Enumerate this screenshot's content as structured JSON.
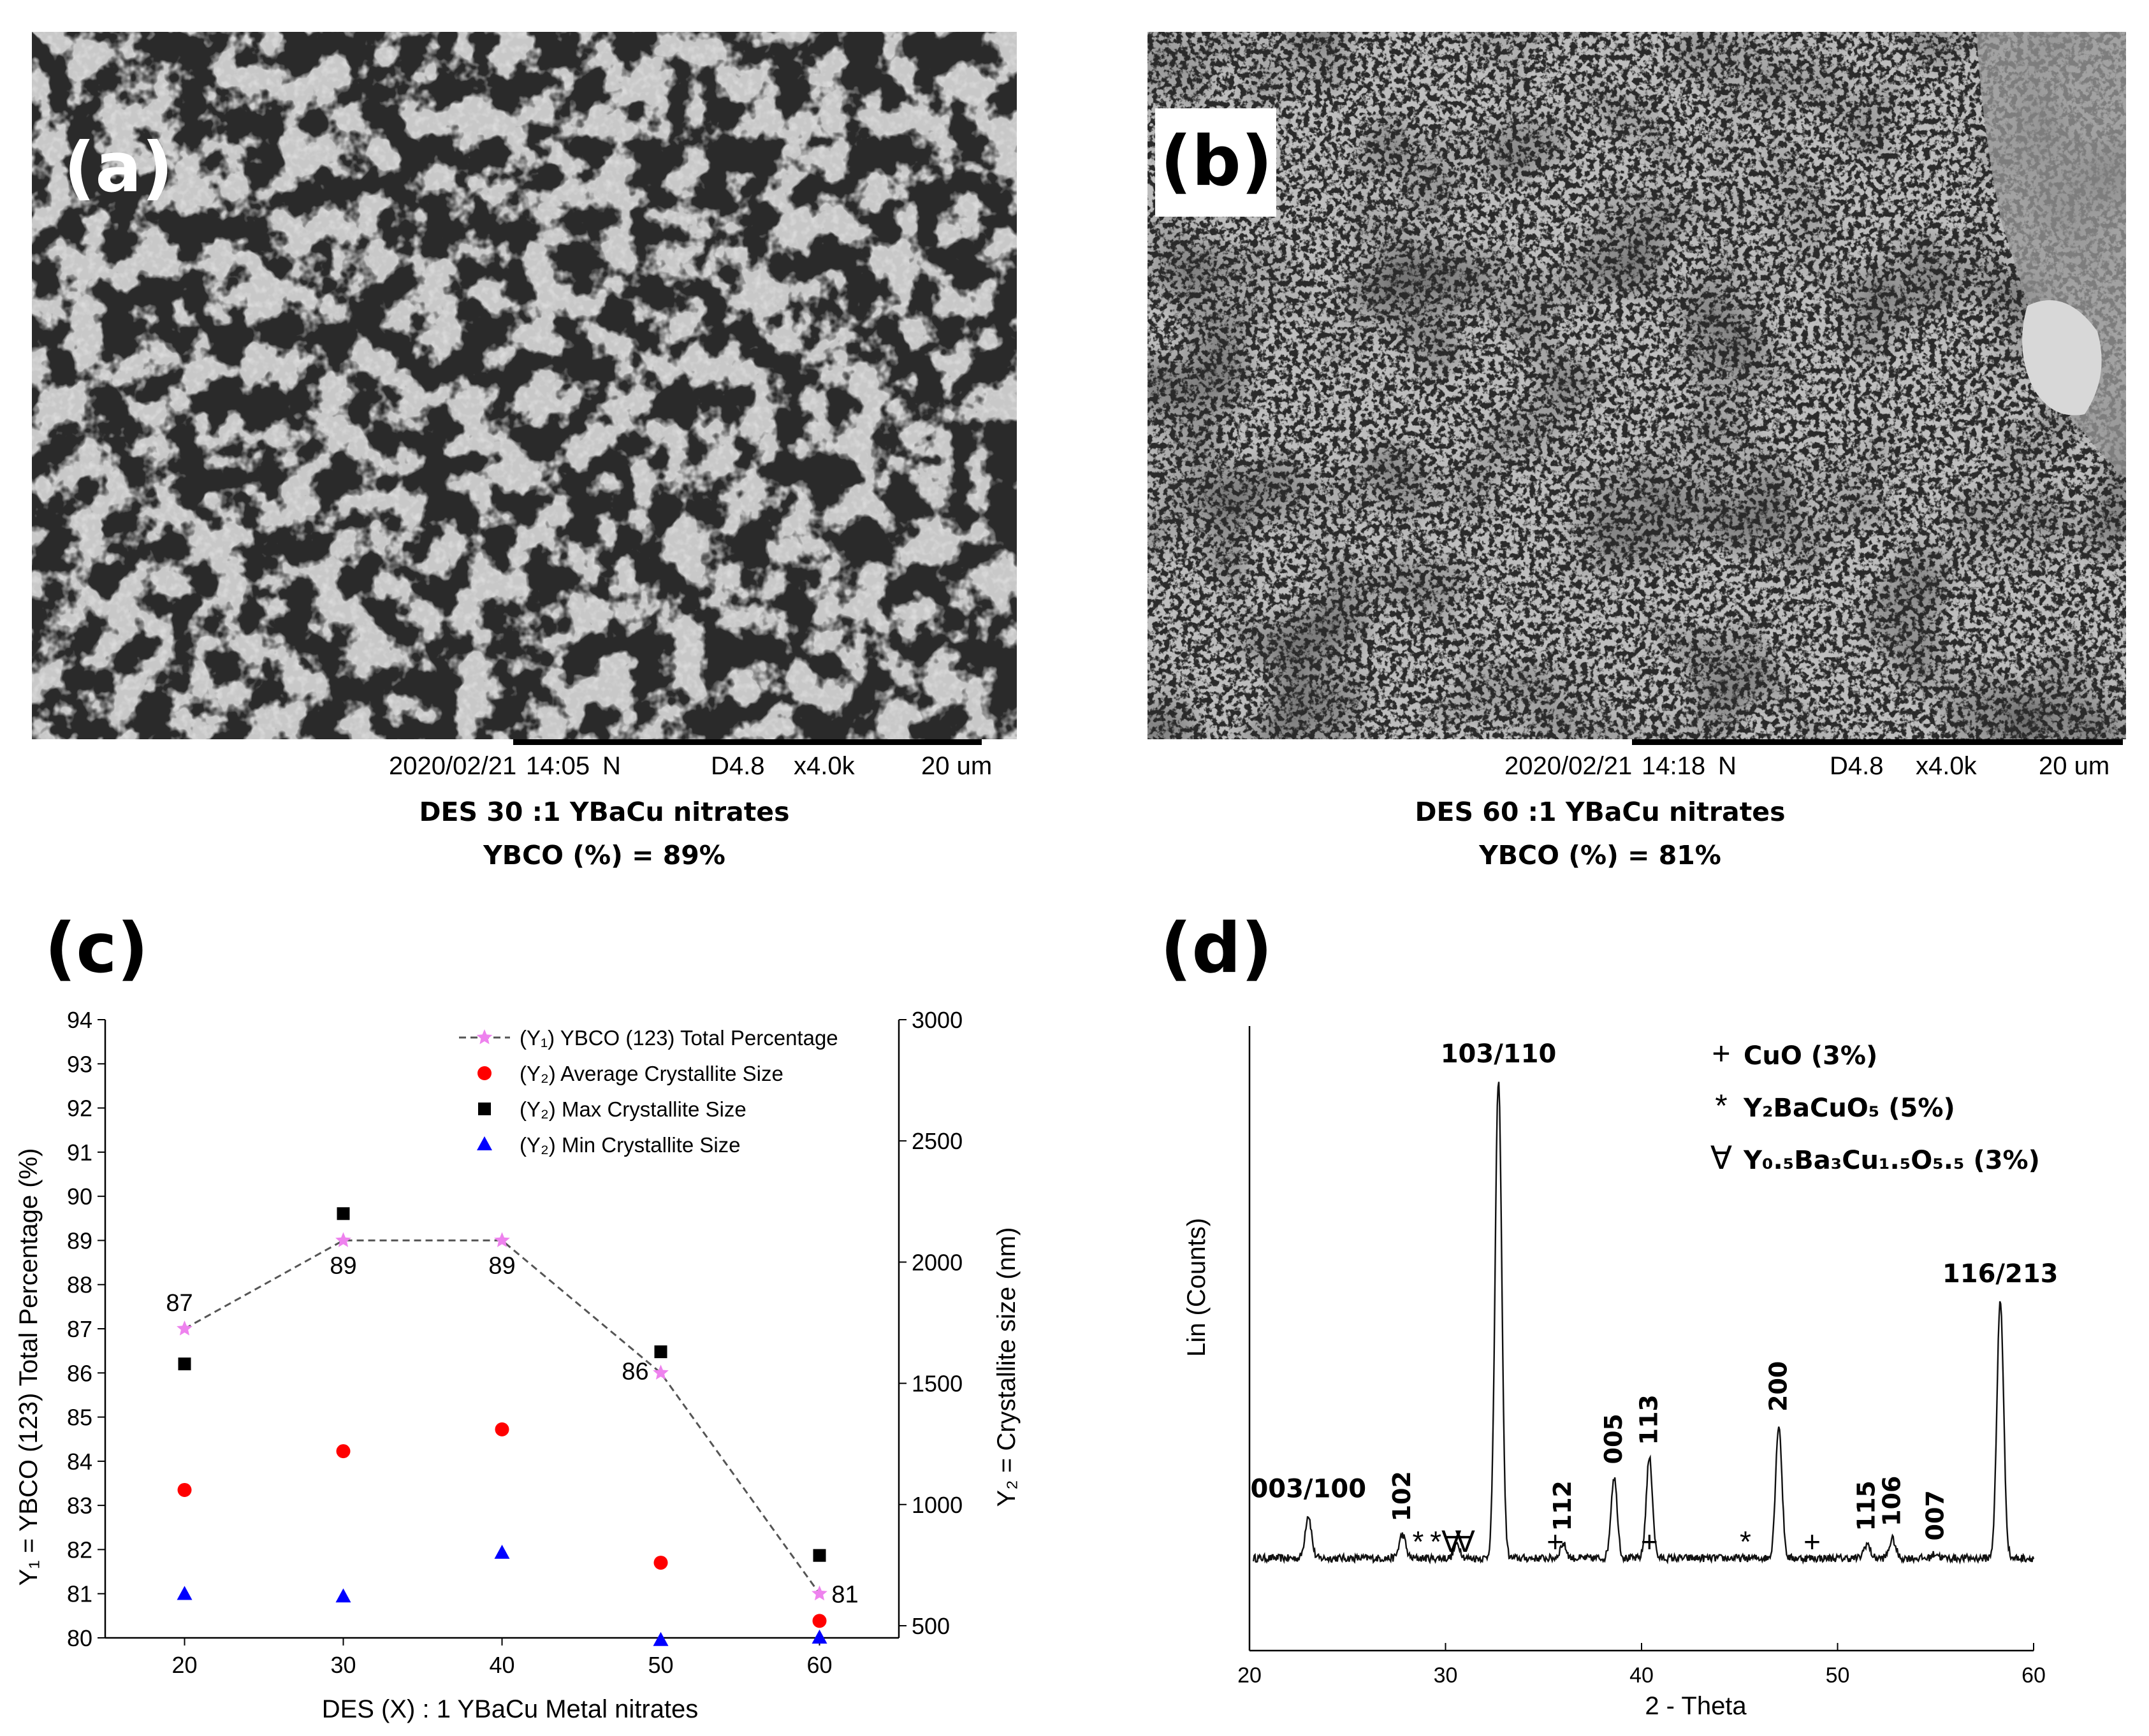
{
  "panel_a": {
    "label": "(a)",
    "databar": {
      "date": "2020/02/21",
      "time": "14:05",
      "mode": "N",
      "wd": "D4.8",
      "mag": "x4.0k",
      "scale": "20 um"
    },
    "caption_line1": "DES 30 :1 YBaCu nitrates",
    "caption_line2": "YBCO (%) = 89%"
  },
  "panel_b": {
    "label": "(b)",
    "databar": {
      "date": "2020/02/21",
      "time": "14:18",
      "mode": "N",
      "wd": "D4.8",
      "mag": "x4.0k",
      "scale": "20 um"
    },
    "caption_line1": "DES 60 :1 YBaCu nitrates",
    "caption_line2": "YBCO (%) = 81%"
  },
  "panel_c": {
    "label": "(c)"
  },
  "panel_d": {
    "label": "(d)"
  },
  "chart_data": [
    {
      "type": "scatter",
      "xlabel": "DES (X) : 1 YBaCu Metal nitrates",
      "ylabel_left": "Y₁ = YBCO (123) Total Percentage (%)",
      "ylabel_right": "Y₂ = Crystallite size (nm)",
      "xlim": [
        15,
        65
      ],
      "x_ticks": [
        20,
        30,
        40,
        50,
        60
      ],
      "ylim_left": [
        80,
        94
      ],
      "y_left_ticks": [
        80,
        81,
        82,
        83,
        84,
        85,
        86,
        87,
        88,
        89,
        90,
        91,
        92,
        93,
        94
      ],
      "ylim_right": [
        450,
        3000
      ],
      "y_right_ticks": [
        500,
        1000,
        1500,
        2000,
        2500,
        3000
      ],
      "x": [
        20,
        30,
        40,
        50,
        60
      ],
      "series": [
        {
          "name": "(Y₁) YBCO (123) Total Percentage",
          "axis": "left",
          "marker": "star",
          "line": "dashed",
          "color": "#ee82ee",
          "values": [
            87,
            89,
            89,
            86,
            81
          ],
          "data_labels": [
            "87",
            "89",
            "89",
            "86",
            "81"
          ]
        },
        {
          "name": "(Y₂) Average Crystallite Size",
          "axis": "right",
          "marker": "circle",
          "color": "#ff0000",
          "values": [
            1060,
            1220,
            1310,
            760,
            520
          ]
        },
        {
          "name": "(Y₂) Max Crystallite Size",
          "axis": "right",
          "marker": "square",
          "color": "#000000",
          "values": [
            1580,
            2200,
            null,
            1630,
            790
          ]
        },
        {
          "name": "(Y₂) Min Crystallite Size",
          "axis": "right",
          "marker": "triangle",
          "color": "#0000ff",
          "values": [
            630,
            620,
            800,
            440,
            450
          ]
        }
      ],
      "legend_position": "top-right"
    },
    {
      "type": "line",
      "xlabel": "2 - Theta",
      "ylabel": "Lin (Counts)",
      "xlim": [
        20,
        60
      ],
      "x_ticks": [
        20,
        30,
        40,
        50,
        60
      ],
      "peaks": [
        {
          "x": 23.0,
          "h": 0.09,
          "label": "003/100"
        },
        {
          "x": 27.8,
          "h": 0.05,
          "label": "102"
        },
        {
          "x": 30.6,
          "h": 0.03,
          "label": ""
        },
        {
          "x": 32.7,
          "h": 1.0,
          "label": "103/110"
        },
        {
          "x": 36.0,
          "h": 0.03,
          "label": "112"
        },
        {
          "x": 38.6,
          "h": 0.17,
          "label": "005"
        },
        {
          "x": 40.4,
          "h": 0.21,
          "label": "113"
        },
        {
          "x": 47.0,
          "h": 0.28,
          "label": "200"
        },
        {
          "x": 51.5,
          "h": 0.03,
          "label": "115"
        },
        {
          "x": 52.8,
          "h": 0.04,
          "label": "106"
        },
        {
          "x": 55.0,
          "h": 0.01,
          "label": "007"
        },
        {
          "x": 58.3,
          "h": 0.54,
          "label": "116/213"
        }
      ],
      "phase_markers": [
        {
          "symbol": "+",
          "x": 35.6
        },
        {
          "symbol": "+",
          "x": 40.4
        },
        {
          "symbol": "+",
          "x": 48.7
        },
        {
          "symbol": "*",
          "x": 28.6
        },
        {
          "symbol": "*",
          "x": 29.5
        },
        {
          "symbol": "*",
          "x": 45.3
        },
        {
          "symbol": "∀",
          "x": 30.3
        },
        {
          "symbol": "∀",
          "x": 31.0
        }
      ],
      "legend": [
        {
          "symbol": "+",
          "text": "CuO (3%)"
        },
        {
          "symbol": "*",
          "text": "Y₂BaCuO₅ (5%)"
        },
        {
          "symbol": "∀",
          "text": "Y₀.₅Ba₃Cu₁.₅O₅.₅ (3%)"
        }
      ],
      "legend_position": "top-right"
    }
  ]
}
